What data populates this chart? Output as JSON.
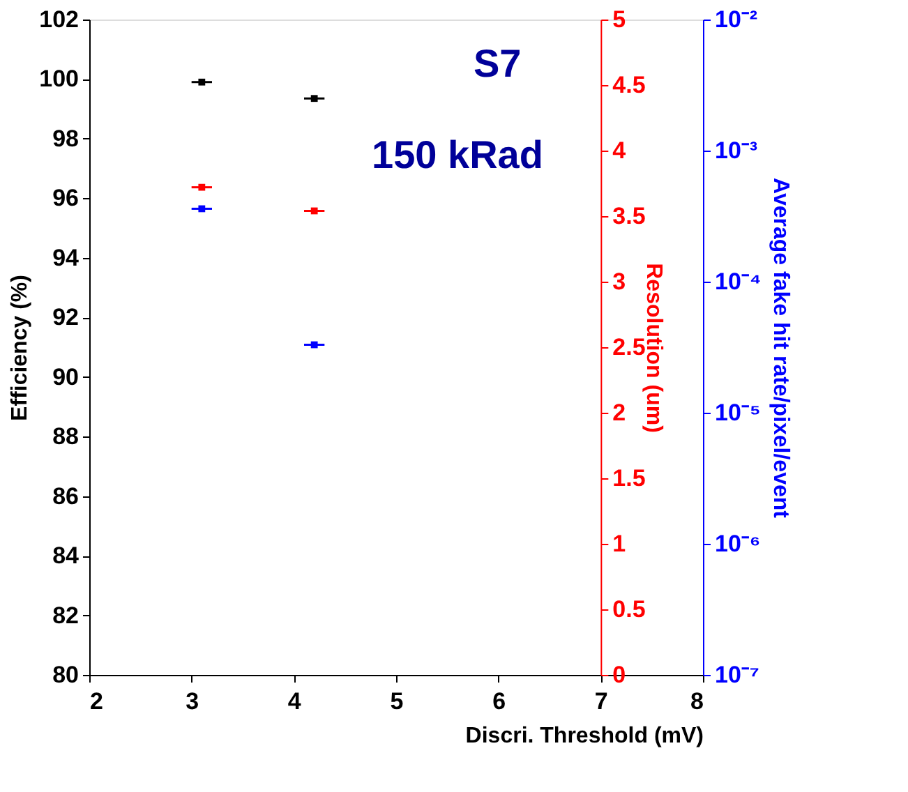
{
  "chart_data": {
    "type": "scatter",
    "xlabel": "Discri. Threshold (mV)",
    "ylabel": "Efficiency (%)",
    "y2label": "Resolution (um)",
    "y3label": "Average fake hit rate/pixel/event",
    "xlim": [
      2,
      8
    ],
    "xticks": [
      2,
      3,
      4,
      5,
      6,
      7,
      8
    ],
    "ylim": [
      80,
      102
    ],
    "yticks": [
      80,
      82,
      84,
      86,
      88,
      90,
      92,
      94,
      96,
      98,
      100,
      102
    ],
    "y2lim": [
      0,
      5
    ],
    "y2ticks": [
      0,
      0.5,
      1,
      1.5,
      2,
      2.5,
      3,
      3.5,
      4,
      4.5,
      5
    ],
    "y3lim": [
      1e-07,
      0.01
    ],
    "y3ticks": [
      {
        "value": 1e-07,
        "label": "10⁻⁷"
      },
      {
        "value": 1e-06,
        "label": "10⁻⁶"
      },
      {
        "value": 1e-05,
        "label": "10⁻⁵"
      },
      {
        "value": 0.0001,
        "label": "10⁻⁴"
      },
      {
        "value": 0.001,
        "label": "10⁻³"
      },
      {
        "value": 0.01,
        "label": "10⁻²"
      }
    ],
    "log": "y3",
    "grid": false,
    "marker": "square",
    "annotations": [
      "S7",
      "150 kRad"
    ],
    "x": [
      3.1,
      4.2
    ],
    "series": [
      {
        "color": "#000000",
        "values": [
          99.9,
          99.35
        ],
        "xerrors": [
          0.1,
          0.1
        ]
      },
      {
        "color": "#ff0000",
        "axis": "y2",
        "values": [
          3.72,
          3.54
        ],
        "xerrors": [
          0.1,
          0.1
        ]
      },
      {
        "color": "#0000ff",
        "axis": "y3",
        "values": [
          0.00036,
          3.3e-05
        ],
        "xerrors": [
          0.1,
          0.1
        ]
      }
    ]
  }
}
